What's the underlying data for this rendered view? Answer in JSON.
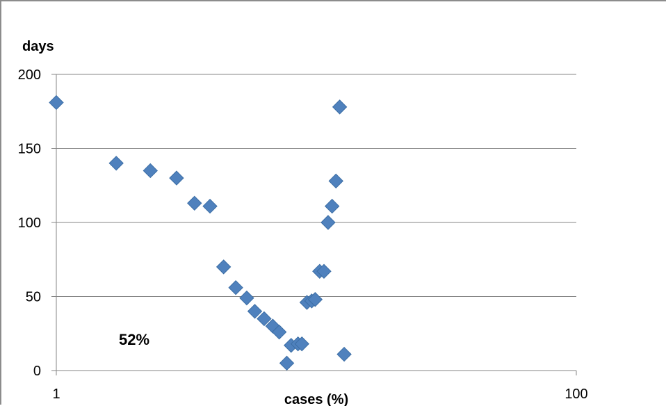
{
  "chart_data": {
    "type": "scatter",
    "title": "",
    "xlabel": "cases (%)",
    "ylabel": "days",
    "xscale": "log",
    "xlim": [
      1,
      100
    ],
    "ylim": [
      0,
      200
    ],
    "x_ticks": [
      1,
      100
    ],
    "x_tick_labels": [
      "1",
      "100"
    ],
    "y_ticks": [
      0,
      50,
      100,
      150,
      200
    ],
    "y_tick_labels": [
      "0",
      "50",
      "100",
      "150",
      "200"
    ],
    "grid": "horizontal",
    "legend": "none",
    "marker": "diamond",
    "series": [
      {
        "points": [
          {
            "x": 1.0,
            "y": 181
          },
          {
            "x": 1.7,
            "y": 140
          },
          {
            "x": 2.3,
            "y": 135
          },
          {
            "x": 2.9,
            "y": 130
          },
          {
            "x": 3.4,
            "y": 113
          },
          {
            "x": 3.9,
            "y": 111
          },
          {
            "x": 4.4,
            "y": 70
          },
          {
            "x": 4.9,
            "y": 56
          },
          {
            "x": 5.4,
            "y": 49
          },
          {
            "x": 5.8,
            "y": 40
          },
          {
            "x": 6.3,
            "y": 35
          },
          {
            "x": 6.8,
            "y": 30
          },
          {
            "x": 7.2,
            "y": 26
          },
          {
            "x": 7.7,
            "y": 5
          },
          {
            "x": 8.0,
            "y": 17
          },
          {
            "x": 8.5,
            "y": 18
          },
          {
            "x": 8.8,
            "y": 18
          },
          {
            "x": 9.2,
            "y": 46
          },
          {
            "x": 9.6,
            "y": 47
          },
          {
            "x": 9.9,
            "y": 48
          },
          {
            "x": 10.3,
            "y": 67
          },
          {
            "x": 10.7,
            "y": 67
          },
          {
            "x": 11.1,
            "y": 100
          },
          {
            "x": 11.5,
            "y": 111
          },
          {
            "x": 11.9,
            "y": 128
          },
          {
            "x": 12.3,
            "y": 178
          },
          {
            "x": 12.8,
            "y": 11
          }
        ]
      }
    ],
    "annotations": [
      {
        "text": "52%",
        "x": 1.35,
        "y": 20
      }
    ],
    "colors": {
      "marker": "#4f81bd",
      "gridline": "#868686",
      "axis": "#868686",
      "frame": "#8c8c8c"
    }
  }
}
